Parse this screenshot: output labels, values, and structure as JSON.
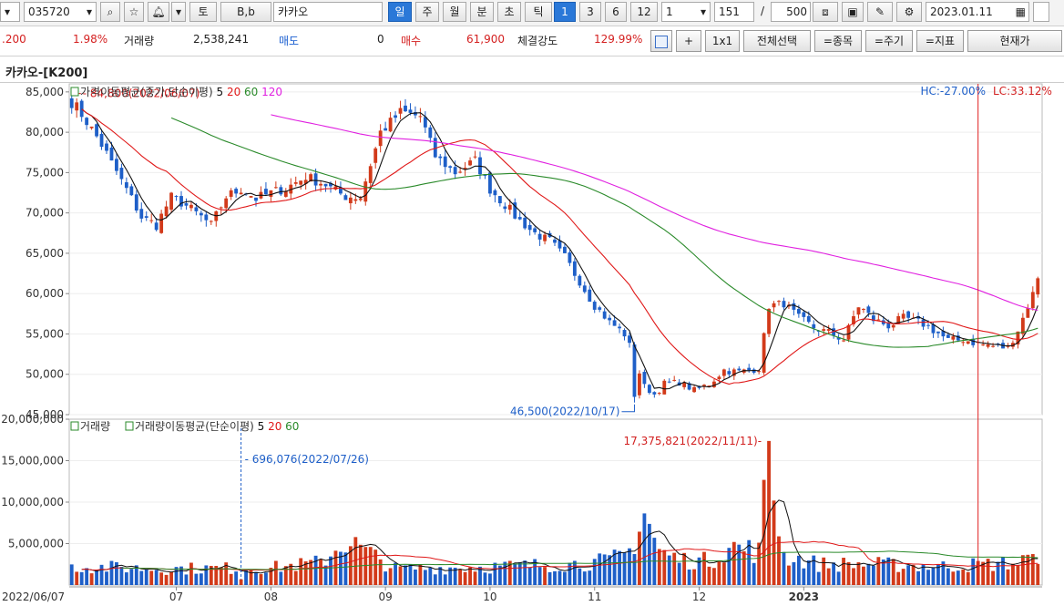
{
  "toolbar": {
    "code": "035720",
    "name": "카카오",
    "buttons": [
      "토",
      "B,b"
    ],
    "periods": [
      "일",
      "주",
      "월",
      "분",
      "초",
      "틱"
    ],
    "num_buttons": [
      "1",
      "3",
      "6",
      "12"
    ],
    "interval": "1",
    "count": "151",
    "slash": "/",
    "total": "500",
    "date": "2023.01.11"
  },
  "info": {
    "change_val": ".200",
    "change_pct": "1.98%",
    "volume_label": "거래량",
    "volume": "2,538,241",
    "sell_label": "매도",
    "sell": "0",
    "buy_label": "매수",
    "buy": "61,900",
    "strength_label": "체결강도",
    "strength": "129.99%",
    "buttons": [
      "+",
      "1x1",
      "전체선택",
      "=종목",
      "=주기",
      "=지표",
      "현재가"
    ]
  },
  "title": "카카오-[K200]",
  "chart_data": {
    "type": "candlestick",
    "price_legend": {
      "prefix": "가격이동평균(종가,단순이평)",
      "periods": [
        "5",
        "20",
        "60",
        "120"
      ]
    },
    "hc_label": "HC:-27.00%",
    "lc_label": "LC:33.12%",
    "price_axis": {
      "min": 45000,
      "max": 86000,
      "ticks": [
        "85,000",
        "80,000",
        "75,000",
        "70,000",
        "65,000",
        "60,000",
        "55,000",
        "50,000",
        "45,000"
      ]
    },
    "high_annotation": "84,800(2022/06/07)",
    "low_annotation": "46,500(2022/10/17)",
    "volume_legend": {
      "prefix1": "거래량",
      "prefix2": "거래량이동평균(단순이평)",
      "periods": [
        "5",
        "20",
        "60"
      ]
    },
    "volume_axis": {
      "max": 20000000,
      "ticks": [
        "20,000,000",
        "15,000,000",
        "10,000,000",
        "5,000,000"
      ]
    },
    "volume_max_annotation": "17,375,821(2022/11/11)",
    "volume_min_annotation": "696,076(2022/07/26)",
    "x_labels": [
      "2022/06/07",
      "07",
      "08",
      "09",
      "10",
      "11",
      "12",
      "2023"
    ],
    "close_anchors": [
      [
        0,
        84000
      ],
      [
        5,
        79500
      ],
      [
        10,
        74000
      ],
      [
        14,
        69500
      ],
      [
        17,
        68500
      ],
      [
        20,
        72000
      ],
      [
        24,
        70500
      ],
      [
        28,
        68500
      ],
      [
        31,
        72000
      ],
      [
        34,
        73000
      ],
      [
        37,
        71800
      ],
      [
        40,
        72500
      ],
      [
        43,
        73000
      ],
      [
        47,
        74500
      ],
      [
        51,
        73500
      ],
      [
        55,
        72000
      ],
      [
        58,
        72000
      ],
      [
        62,
        80000
      ],
      [
        66,
        82500
      ],
      [
        70,
        82000
      ],
      [
        73,
        77000
      ],
      [
        77,
        75000
      ],
      [
        81,
        76500
      ],
      [
        84,
        73000
      ],
      [
        87,
        71000
      ],
      [
        90,
        69000
      ],
      [
        93,
        67500
      ],
      [
        96,
        66500
      ],
      [
        99,
        64500
      ],
      [
        102,
        61500
      ],
      [
        105,
        58500
      ],
      [
        108,
        56500
      ],
      [
        111,
        55000
      ],
      [
        113,
        52000
      ],
      [
        115,
        48500
      ],
      [
        117,
        47500
      ],
      [
        119,
        48800
      ],
      [
        122,
        49000
      ],
      [
        125,
        48000
      ],
      [
        128,
        48800
      ],
      [
        131,
        50500
      ],
      [
        134,
        50300
      ],
      [
        138,
        50800
      ],
      [
        140,
        58500
      ],
      [
        143,
        58800
      ],
      [
        146,
        57000
      ],
      [
        149,
        55800
      ],
      [
        152,
        55200
      ],
      [
        155,
        54300
      ],
      [
        158,
        58500
      ],
      [
        161,
        56800
      ],
      [
        164,
        56000
      ],
      [
        167,
        57000
      ],
      [
        170,
        56500
      ],
      [
        173,
        55500
      ],
      [
        176,
        54200
      ],
      [
        179,
        54300
      ],
      [
        182,
        53800
      ],
      [
        185,
        53500
      ],
      [
        188,
        53300
      ],
      [
        190,
        55500
      ],
      [
        192,
        58500
      ],
      [
        194,
        61400
      ]
    ],
    "volume_anchors": [
      [
        0,
        2500000
      ],
      [
        18,
        2200000
      ],
      [
        40,
        2300000
      ],
      [
        50,
        3000000
      ],
      [
        55,
        6000000
      ],
      [
        65,
        2200000
      ],
      [
        82,
        2400000
      ],
      [
        100,
        2800000
      ],
      [
        108,
        3200000
      ],
      [
        112,
        4500000
      ],
      [
        115,
        9800000
      ],
      [
        118,
        4500000
      ],
      [
        122,
        3400000
      ],
      [
        128,
        3200000
      ],
      [
        132,
        5200000
      ],
      [
        138,
        4500000
      ],
      [
        140,
        17375821
      ],
      [
        143,
        4000000
      ],
      [
        150,
        2800000
      ],
      [
        160,
        2800000
      ],
      [
        175,
        2500000
      ],
      [
        190,
        3000000
      ],
      [
        192,
        3600000
      ],
      [
        194,
        2538241
      ]
    ]
  }
}
